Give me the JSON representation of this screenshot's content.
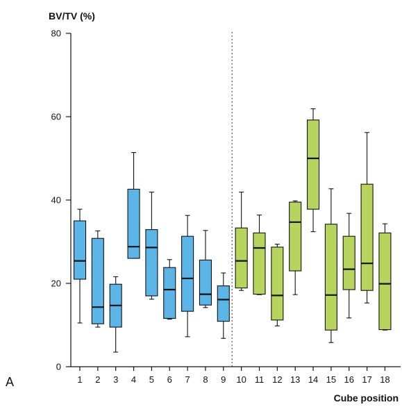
{
  "panel_label": "A",
  "chart_data": {
    "type": "boxplot",
    "ylabel": "BV/TV (%)",
    "xlabel": "Cube position",
    "ylim": [
      0,
      80
    ],
    "yticks": [
      0,
      20,
      40,
      60,
      80
    ],
    "divider_after_category": "9",
    "colors": {
      "group_1_9": "#5bb5e6",
      "group_10_18": "#b7d45c",
      "line": "#111111"
    },
    "categories": [
      "1",
      "2",
      "3",
      "4",
      "5",
      "6",
      "7",
      "8",
      "9",
      "10",
      "11",
      "12",
      "13",
      "14",
      "15",
      "16",
      "17",
      "18"
    ],
    "boxes": [
      {
        "whisker_low": 10.5,
        "q1": 21.0,
        "median": 25.4,
        "q3": 35.0,
        "whisker_high": 37.8
      },
      {
        "whisker_low": 9.5,
        "q1": 10.3,
        "median": 14.3,
        "q3": 30.8,
        "whisker_high": 32.6
      },
      {
        "whisker_low": 3.5,
        "q1": 9.5,
        "median": 14.7,
        "q3": 19.8,
        "whisker_high": 21.6
      },
      {
        "whisker_low": 26.0,
        "q1": 26.0,
        "median": 28.8,
        "q3": 42.6,
        "whisker_high": 51.4
      },
      {
        "whisker_low": 16.2,
        "q1": 17.0,
        "median": 28.6,
        "q3": 32.9,
        "whisker_high": 41.9
      },
      {
        "whisker_low": 11.4,
        "q1": 11.6,
        "median": 18.5,
        "q3": 23.8,
        "whisker_high": 25.7
      },
      {
        "whisker_low": 7.2,
        "q1": 13.3,
        "median": 21.2,
        "q3": 31.3,
        "whisker_high": 36.3
      },
      {
        "whisker_low": 14.2,
        "q1": 14.8,
        "median": 17.4,
        "q3": 25.6,
        "whisker_high": 32.7
      },
      {
        "whisker_low": 6.8,
        "q1": 10.9,
        "median": 16.1,
        "q3": 19.4,
        "whisker_high": 22.5
      },
      {
        "whisker_low": 18.3,
        "q1": 18.9,
        "median": 25.4,
        "q3": 33.3,
        "whisker_high": 41.9
      },
      {
        "whisker_low": 17.3,
        "q1": 17.4,
        "median": 28.5,
        "q3": 32.1,
        "whisker_high": 36.4
      },
      {
        "whisker_low": 9.8,
        "q1": 11.2,
        "median": 17.1,
        "q3": 28.7,
        "whisker_high": 29.4
      },
      {
        "whisker_low": 17.3,
        "q1": 23.0,
        "median": 34.7,
        "q3": 39.5,
        "whisker_high": 39.8
      },
      {
        "whisker_low": 32.4,
        "q1": 37.8,
        "median": 50.0,
        "q3": 59.2,
        "whisker_high": 61.9
      },
      {
        "whisker_low": 5.8,
        "q1": 8.8,
        "median": 17.2,
        "q3": 34.2,
        "whisker_high": 42.7
      },
      {
        "whisker_low": 11.7,
        "q1": 18.5,
        "median": 23.4,
        "q3": 31.3,
        "whisker_high": 36.8
      },
      {
        "whisker_low": 15.3,
        "q1": 18.3,
        "median": 24.8,
        "q3": 43.8,
        "whisker_high": 56.2
      },
      {
        "whisker_low": 8.8,
        "q1": 8.9,
        "median": 19.9,
        "q3": 32.1,
        "whisker_high": 34.3
      }
    ]
  }
}
